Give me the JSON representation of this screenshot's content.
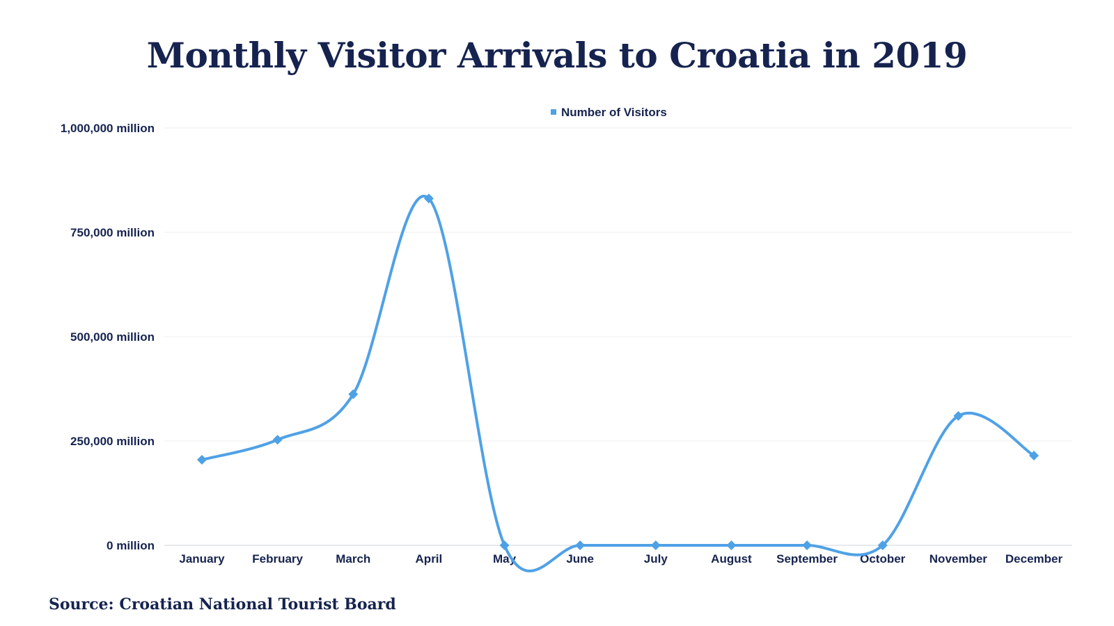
{
  "chart_data": {
    "type": "line",
    "title": "Monthly Visitor Arrivals to Croatia in 2019",
    "source": "Source: Croatian National Tourist Board",
    "categories": [
      "January",
      "February",
      "March",
      "April",
      "May",
      "June",
      "July",
      "August",
      "September",
      "October",
      "November",
      "December"
    ],
    "series": [
      {
        "name": "Number of Visitors",
        "color": "#4fa1e6",
        "values": [
          205000,
          253000,
          362000,
          831000,
          0,
          0,
          0,
          0,
          0,
          0,
          310000,
          215000
        ]
      }
    ],
    "yticks": [
      0,
      250000,
      500000,
      750000,
      1000000
    ],
    "ytick_labels": [
      "0 million",
      "250,000 million",
      "500,000 million",
      "750,000 million",
      "1,000,000 million"
    ],
    "ylim": [
      0,
      1000000
    ],
    "legend_position": "top-center",
    "grid": true
  }
}
